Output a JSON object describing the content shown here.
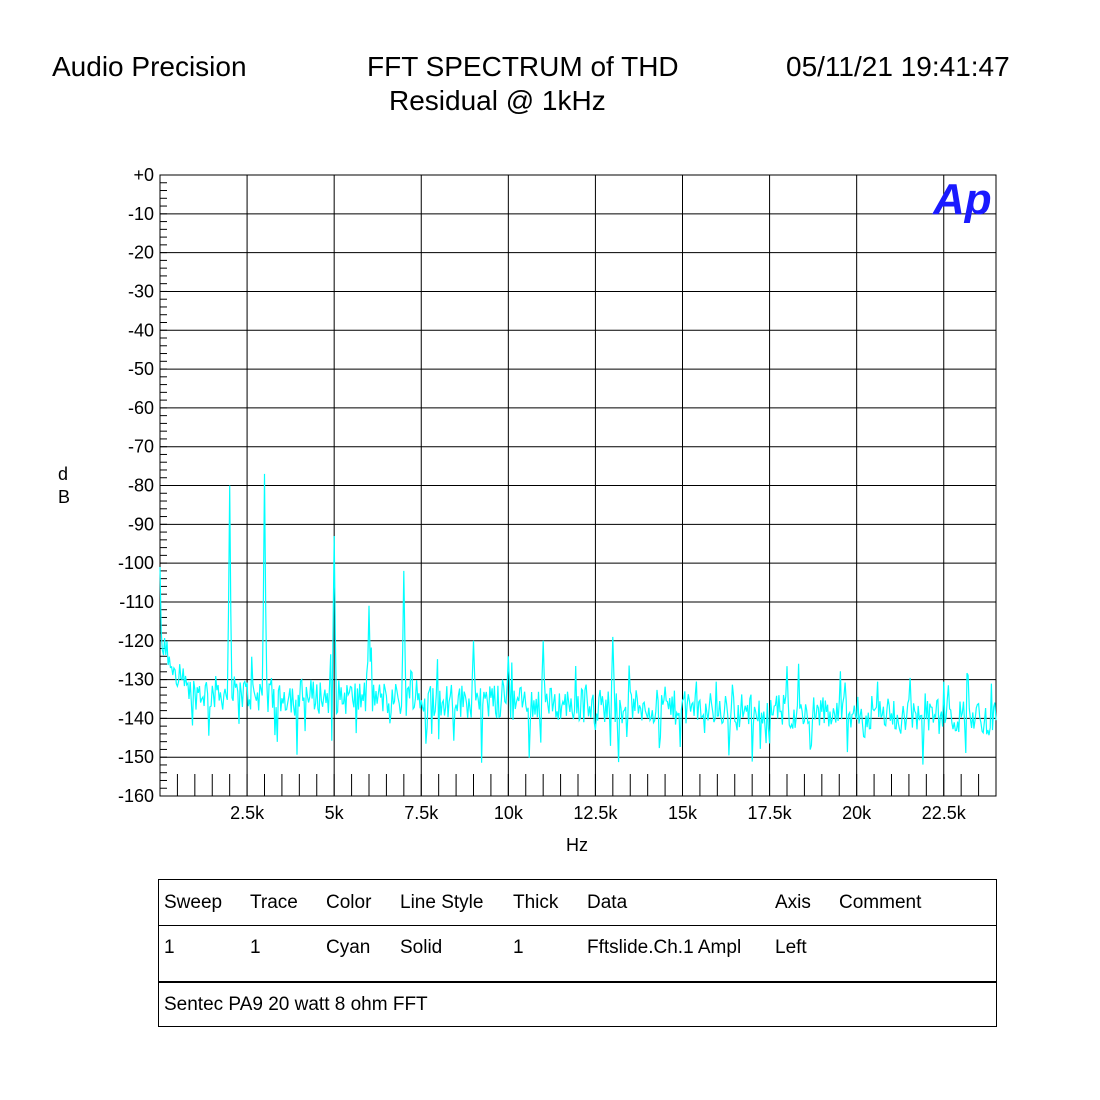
{
  "header": {
    "brand": "Audio Precision",
    "title_line1": "FFT SPECTRUM of THD",
    "title_line2": "Residual @ 1kHz",
    "timestamp": "05/11/21 19:41:47"
  },
  "logo": {
    "text": "Ap",
    "color": "#1a1aff"
  },
  "chart_data": {
    "type": "line",
    "title": "FFT SPECTRUM of THD Residual @ 1kHz",
    "xlabel": "Hz",
    "ylabel": "dB",
    "xlim": [
      0,
      24000
    ],
    "ylim": [
      -160,
      0
    ],
    "grid": true,
    "x_tick_labels": [
      "2.5k",
      "5k",
      "7.5k",
      "10k",
      "12.5k",
      "15k",
      "17.5k",
      "20k",
      "22.5k"
    ],
    "x_tick_values": [
      2500,
      5000,
      7500,
      10000,
      12500,
      15000,
      17500,
      20000,
      22500
    ],
    "y_tick_labels": [
      "+0",
      "-10",
      "-20",
      "-30",
      "-40",
      "-50",
      "-60",
      "-70",
      "-80",
      "-90",
      "-100",
      "-110",
      "-120",
      "-130",
      "-140",
      "-150",
      "-160"
    ],
    "y_tick_values": [
      0,
      -10,
      -20,
      -30,
      -40,
      -50,
      -60,
      -70,
      -80,
      -90,
      -100,
      -110,
      -120,
      -130,
      -140,
      -150,
      -160
    ],
    "series": [
      {
        "color": "#00ffff",
        "peaks": [
          {
            "x": 0,
            "y": -101
          },
          {
            "x": 2000,
            "y": -80
          },
          {
            "x": 3000,
            "y": -77
          },
          {
            "x": 5000,
            "y": -93
          },
          {
            "x": 6000,
            "y": -111
          },
          {
            "x": 7000,
            "y": -102
          },
          {
            "x": 9000,
            "y": -120
          },
          {
            "x": 10000,
            "y": -124
          },
          {
            "x": 11000,
            "y": -120
          },
          {
            "x": 13000,
            "y": -119
          }
        ],
        "noise_floor_start": -133,
        "noise_floor_end": -140
      }
    ]
  },
  "legend": {
    "headers": [
      "Sweep",
      "Trace",
      "Color",
      "Line Style",
      "Thick",
      "Data",
      "Axis",
      "Comment"
    ],
    "rows": [
      [
        "1",
        "1",
        "Cyan",
        "Solid",
        "1",
        "Fftslide.Ch.1 Ampl",
        "Left",
        ""
      ]
    ],
    "note": "Sentec PA9 20 watt 8 ohm FFT"
  }
}
